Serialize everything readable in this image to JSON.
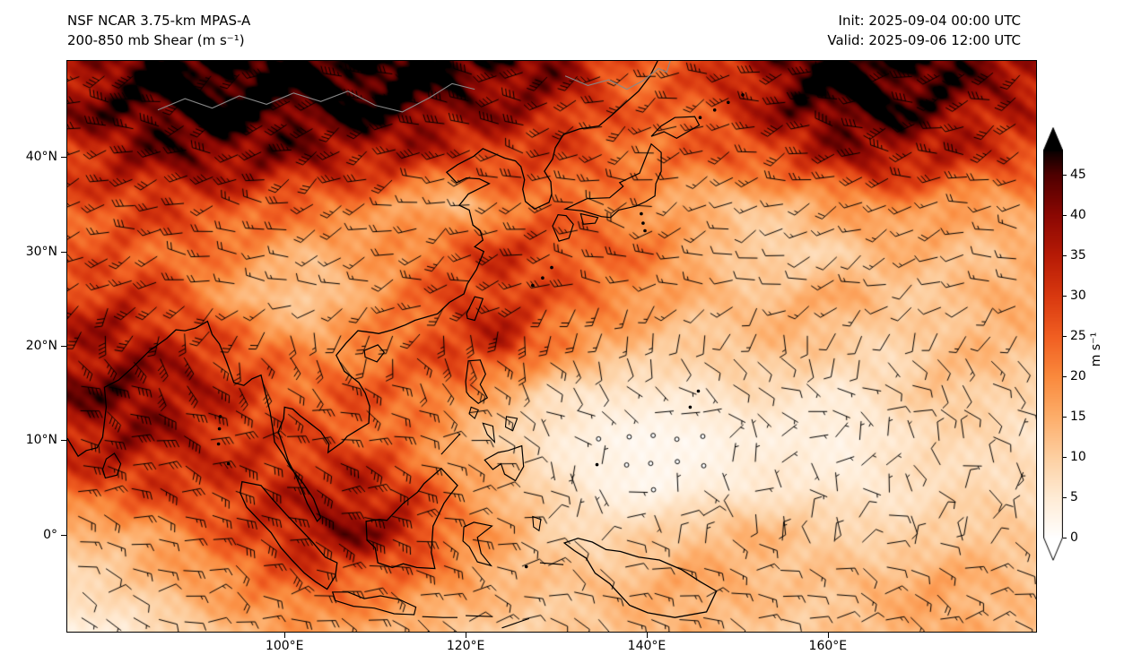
{
  "header": {
    "title_line1": "NSF NCAR 3.75-km MPAS-A",
    "title_line2": "200-850 mb Shear (m s⁻¹)",
    "init_line": "Init: 2025-09-04 00:00 UTC",
    "valid_line": "Valid: 2025-09-06 12:00 UTC"
  },
  "chart_data": {
    "type": "heatmap",
    "title": "NSF NCAR 3.75-km MPAS-A 200-850 mb Shear (m s⁻¹)",
    "model": "NSF NCAR 3.75-km MPAS-A",
    "variable": "200-850 mb vertical wind shear magnitude",
    "units": "m s⁻¹",
    "init": "2025-09-04 00:00 UTC",
    "valid": "2025-09-06 12:00 UTC",
    "overlay": "wind shear barbs (black); open calm circles where shear < 3 m s⁻¹",
    "lon_range": [
      76,
      183
    ],
    "lat_range": [
      -10.3,
      50.2
    ],
    "x_axis": {
      "ticks": [
        "100°E",
        "120°E",
        "140°E",
        "160°E"
      ],
      "tick_lons": [
        100,
        120,
        140,
        160
      ]
    },
    "y_axis": {
      "ticks": [
        "40°N",
        "30°N",
        "20°N",
        "10°N",
        "0°"
      ],
      "tick_lats": [
        40,
        30,
        20,
        10,
        0
      ]
    },
    "colorbar": {
      "ticks": [
        0,
        5,
        10,
        15,
        20,
        25,
        30,
        35,
        40,
        45
      ],
      "vmin": 0,
      "vmax": 48,
      "label": "m s⁻¹",
      "extend": "both",
      "colormap": "white → pale orange → orange → red → dark red → black (gist_heat reversed style)"
    },
    "grid": {
      "description": "coarse estimated shear field (m/s), rows north→south",
      "lats": [
        50,
        45,
        40,
        35,
        30,
        25,
        20,
        15,
        10,
        5,
        0,
        -5,
        -10
      ],
      "lons": [
        76,
        81.35,
        86.7,
        92.05,
        97.4,
        102.75,
        108.1,
        113.45,
        118.8,
        124.15,
        129.5,
        134.85,
        140.2,
        145.55,
        150.9,
        156.25,
        161.6,
        166.95,
        172.3,
        177.65,
        183
      ],
      "values": [
        [
          36,
          42,
          48,
          50,
          50,
          48,
          50,
          50,
          48,
          45,
          42,
          30,
          25,
          28,
          35,
          46,
          50,
          50,
          48,
          40,
          38
        ],
        [
          38,
          44,
          48,
          50,
          48,
          46,
          48,
          46,
          40,
          38,
          35,
          28,
          24,
          26,
          32,
          42,
          48,
          46,
          42,
          36,
          34
        ],
        [
          30,
          36,
          40,
          42,
          40,
          38,
          36,
          34,
          30,
          30,
          28,
          25,
          22,
          24,
          26,
          30,
          36,
          38,
          34,
          30,
          28
        ],
        [
          26,
          28,
          30,
          28,
          26,
          24,
          22,
          16,
          12,
          20,
          24,
          22,
          18,
          14,
          12,
          14,
          18,
          20,
          18,
          16,
          18
        ],
        [
          24,
          26,
          24,
          22,
          18,
          14,
          16,
          20,
          26,
          30,
          28,
          24,
          22,
          16,
          10,
          8,
          10,
          14,
          14,
          12,
          14
        ],
        [
          30,
          32,
          28,
          20,
          12,
          10,
          16,
          22,
          28,
          32,
          26,
          22,
          18,
          14,
          12,
          14,
          16,
          12,
          10,
          14,
          16
        ],
        [
          36,
          38,
          34,
          30,
          24,
          18,
          20,
          24,
          30,
          34,
          22,
          16,
          12,
          10,
          12,
          14,
          10,
          8,
          12,
          14,
          12
        ],
        [
          40,
          42,
          40,
          34,
          28,
          24,
          26,
          24,
          22,
          14,
          8,
          6,
          5,
          6,
          8,
          6,
          5,
          8,
          12,
          10,
          8
        ],
        [
          34,
          38,
          36,
          32,
          30,
          28,
          26,
          22,
          14,
          10,
          5,
          3,
          2,
          2,
          4,
          4,
          3,
          6,
          8,
          8,
          6
        ],
        [
          26,
          28,
          30,
          30,
          32,
          34,
          36,
          30,
          20,
          14,
          8,
          4,
          2,
          4,
          5,
          6,
          5,
          6,
          8,
          8,
          8
        ],
        [
          12,
          14,
          18,
          24,
          30,
          38,
          40,
          34,
          22,
          16,
          10,
          8,
          10,
          12,
          14,
          12,
          10,
          8,
          10,
          12,
          10
        ],
        [
          8,
          10,
          14,
          18,
          22,
          26,
          24,
          22,
          18,
          14,
          12,
          12,
          14,
          16,
          14,
          12,
          12,
          14,
          16,
          14,
          12
        ],
        [
          4,
          5,
          8,
          12,
          16,
          18,
          16,
          14,
          12,
          10,
          10,
          12,
          14,
          14,
          12,
          10,
          12,
          14,
          16,
          14,
          12
        ]
      ]
    }
  }
}
